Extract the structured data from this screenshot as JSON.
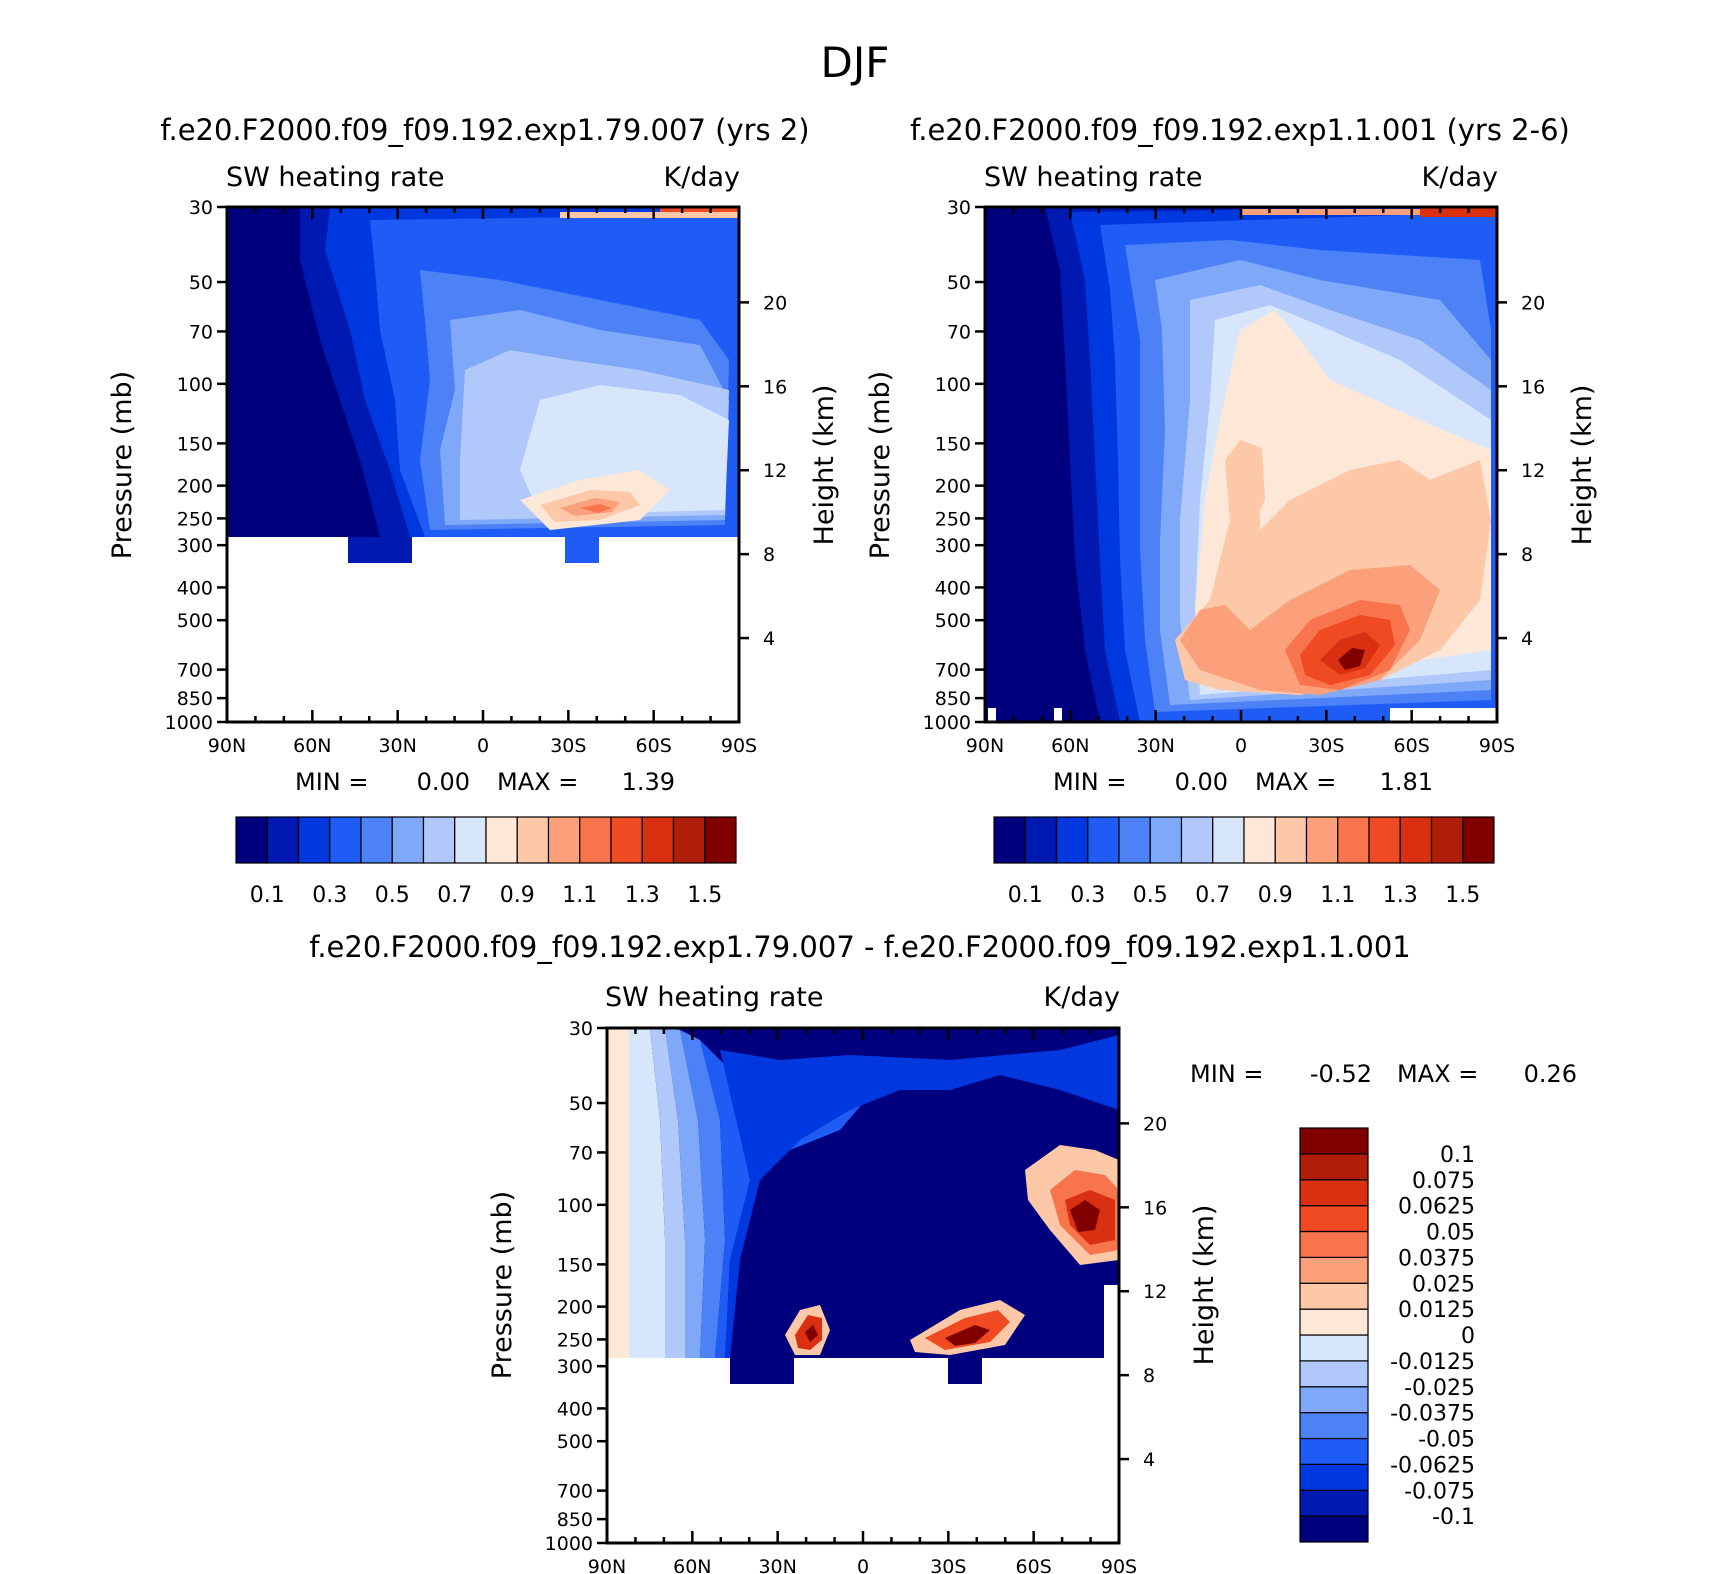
{
  "figure": {
    "main_title": "DJF"
  },
  "chart_data": [
    {
      "id": "p1",
      "type": "heatmap",
      "title": "f.e20.F2000.f09_f09.192.exp1.79.007 (yrs 2)",
      "left_label": "SW heating rate",
      "right_label": "K/day",
      "xlabel": "",
      "ylabel": "Pressure (mb)",
      "y2label": "Height (km)",
      "x_ticks": [
        "90N",
        "60N",
        "30N",
        "0",
        "30S",
        "60S",
        "90S"
      ],
      "pressure_levels": [
        30,
        50,
        70,
        100,
        150,
        200,
        250,
        300,
        400,
        500,
        700,
        850,
        1000
      ],
      "pressure_labels": [
        "30",
        "50",
        "70",
        "100",
        "150",
        "200",
        "250",
        "300",
        "400",
        "500",
        "700",
        "850",
        "1000"
      ],
      "height_km": [
        20,
        16,
        12,
        8,
        4
      ],
      "height_labels": [
        "20",
        "16",
        "12",
        "8",
        "4"
      ],
      "stats": {
        "min_label": "MIN =",
        "min": "0.00",
        "max_label": "MAX =",
        "max": "1.39"
      },
      "levels": [
        0.1,
        0.2,
        0.3,
        0.4,
        0.5,
        0.6,
        0.7,
        0.8,
        0.9,
        1.0,
        1.1,
        1.2,
        1.3,
        1.4,
        1.5
      ],
      "colorbar_labels": [
        "0.1",
        "0.3",
        "0.5",
        "0.7",
        "0.9",
        "1.1",
        "1.3",
        "1.5"
      ],
      "colors": [
        "#00007f",
        "#0019b0",
        "#0038e0",
        "#1e5cf5",
        "#4d82f7",
        "#80a8f8",
        "#b0c8fa",
        "#d8e6fb",
        "#fde8d8",
        "#fcc8a8",
        "#fba07a",
        "#f7744d",
        "#ef4a22",
        "#d83010",
        "#b01d08",
        "#800000"
      ]
    },
    {
      "id": "p2",
      "type": "heatmap",
      "title": "f.e20.F2000.f09_f09.192.exp1.1.001 (yrs 2-6)",
      "left_label": "SW heating rate",
      "right_label": "K/day",
      "xlabel": "",
      "ylabel": "Pressure (mb)",
      "y2label": "Height (km)",
      "x_ticks": [
        "90N",
        "60N",
        "30N",
        "0",
        "30S",
        "60S",
        "90S"
      ],
      "pressure_levels": [
        30,
        50,
        70,
        100,
        150,
        200,
        250,
        300,
        400,
        500,
        700,
        850,
        1000
      ],
      "pressure_labels": [
        "30",
        "50",
        "70",
        "100",
        "150",
        "200",
        "250",
        "300",
        "400",
        "500",
        "700",
        "850",
        "1000"
      ],
      "height_km": [
        20,
        16,
        12,
        8,
        4
      ],
      "height_labels": [
        "20",
        "16",
        "12",
        "8",
        "4"
      ],
      "stats": {
        "min_label": "MIN =",
        "min": "0.00",
        "max_label": "MAX =",
        "max": "1.81"
      },
      "levels": [
        0.1,
        0.2,
        0.3,
        0.4,
        0.5,
        0.6,
        0.7,
        0.8,
        0.9,
        1.0,
        1.1,
        1.2,
        1.3,
        1.4,
        1.5
      ],
      "colorbar_labels": [
        "0.1",
        "0.3",
        "0.5",
        "0.7",
        "0.9",
        "1.1",
        "1.3",
        "1.5"
      ],
      "colors": [
        "#00007f",
        "#0019b0",
        "#0038e0",
        "#1e5cf5",
        "#4d82f7",
        "#80a8f8",
        "#b0c8fa",
        "#d8e6fb",
        "#fde8d8",
        "#fcc8a8",
        "#fba07a",
        "#f7744d",
        "#ef4a22",
        "#d83010",
        "#b01d08",
        "#800000"
      ]
    },
    {
      "id": "p3",
      "type": "heatmap",
      "title": "f.e20.F2000.f09_f09.192.exp1.79.007 - f.e20.F2000.f09_f09.192.exp1.1.001",
      "left_label": "SW heating rate",
      "right_label": "K/day",
      "xlabel": "",
      "ylabel": "Pressure (mb)",
      "y2label": "Height (km)",
      "x_ticks": [
        "90N",
        "60N",
        "30N",
        "0",
        "30S",
        "60S",
        "90S"
      ],
      "pressure_levels": [
        30,
        50,
        70,
        100,
        150,
        200,
        250,
        300,
        400,
        500,
        700,
        850,
        1000
      ],
      "pressure_labels": [
        "30",
        "50",
        "70",
        "100",
        "150",
        "200",
        "250",
        "300",
        "400",
        "500",
        "700",
        "850",
        "1000"
      ],
      "height_km": [
        20,
        16,
        12,
        8,
        4
      ],
      "height_labels": [
        "20",
        "16",
        "12",
        "8",
        "4"
      ],
      "stats": {
        "min_label": "MIN =",
        "min": "-0.52",
        "max_label": "MAX =",
        "max": "0.26"
      },
      "levels": [
        -0.1,
        -0.075,
        -0.0625,
        -0.05,
        -0.0375,
        -0.025,
        -0.0125,
        0,
        0.0125,
        0.025,
        0.0375,
        0.05,
        0.0625,
        0.075,
        0.1
      ],
      "colorbar_labels": [
        "0.1",
        "0.075",
        "0.0625",
        "0.05",
        "0.0375",
        "0.025",
        "0.0125",
        "0",
        "-0.0125",
        "-0.025",
        "-0.0375",
        "-0.05",
        "-0.0625",
        "-0.075",
        "-0.1"
      ],
      "colors": [
        "#00007f",
        "#0019b0",
        "#0038e0",
        "#1e5cf5",
        "#4d82f7",
        "#80a8f8",
        "#b0c8fa",
        "#d8e6fb",
        "#fde8d8",
        "#fcc8a8",
        "#fba07a",
        "#f7744d",
        "#ef4a22",
        "#d83010",
        "#b01d08",
        "#800000"
      ]
    }
  ]
}
